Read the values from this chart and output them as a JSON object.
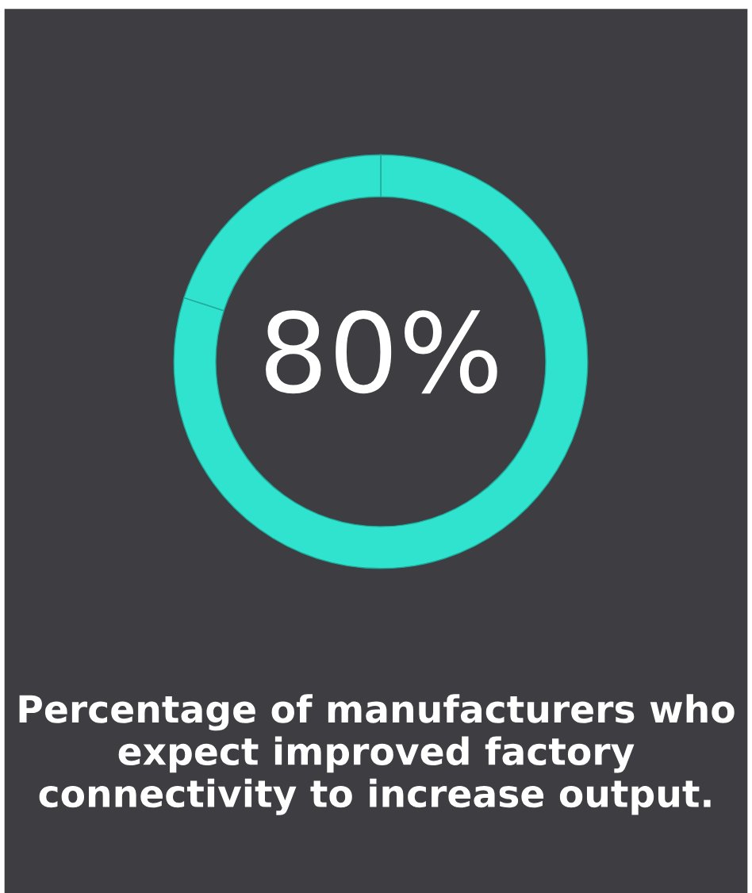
{
  "chart_data": {
    "type": "donut",
    "title": "Percentage of manufacturers who expect improved factory connectivity to increase output.",
    "categories": [
      null,
      null
    ],
    "values": [
      80,
      20
    ],
    "colors": [
      "#30e3cf",
      "#30e3cf"
    ],
    "value_labels": [
      "80%",
      null
    ]
  }
}
